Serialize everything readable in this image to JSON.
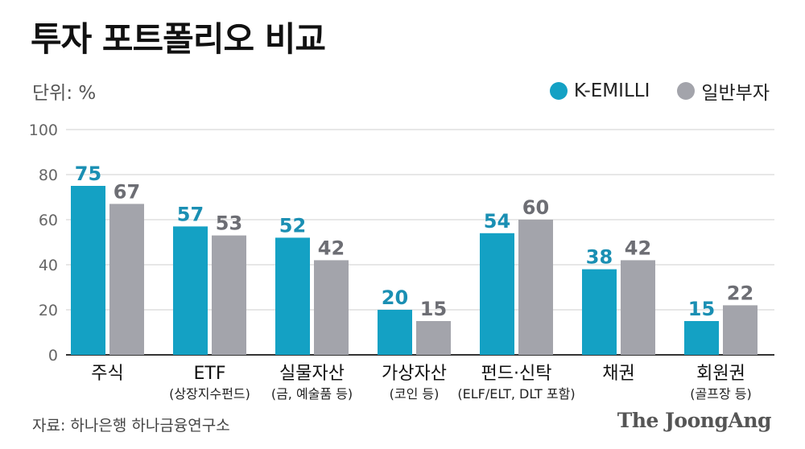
{
  "chart_data": {
    "type": "bar",
    "title": "투자 포트폴리오 비교",
    "unit_label": "단위: %",
    "ylim": [
      0,
      100
    ],
    "yticks": [
      0,
      20,
      40,
      60,
      80,
      100
    ],
    "grid": true,
    "legend_position": "top-right",
    "categories": [
      {
        "name": "주식",
        "sub": ""
      },
      {
        "name": "ETF",
        "sub": "(상장지수펀드)"
      },
      {
        "name": "실물자산",
        "sub": "(금, 예술품 등)"
      },
      {
        "name": "가상자산",
        "sub": "(코인 등)"
      },
      {
        "name": "펀드·신탁",
        "sub": "(ELF/ELT, DLT 포함)"
      },
      {
        "name": "채권",
        "sub": ""
      },
      {
        "name": "회원권",
        "sub": "(골프장 등)"
      }
    ],
    "series": [
      {
        "name": "K-EMILLI",
        "color": "#14a1c4",
        "label_color": "#1a8fb3",
        "values": [
          75,
          57,
          52,
          20,
          54,
          38,
          15
        ]
      },
      {
        "name": "일반부자",
        "color": "#a3a4ab",
        "label_color": "#6d6e74",
        "values": [
          67,
          53,
          42,
          15,
          60,
          42,
          22
        ]
      }
    ]
  },
  "footer": {
    "source": "자료: 하나은행 하나금융연구소",
    "brand": "The JoongAng"
  }
}
